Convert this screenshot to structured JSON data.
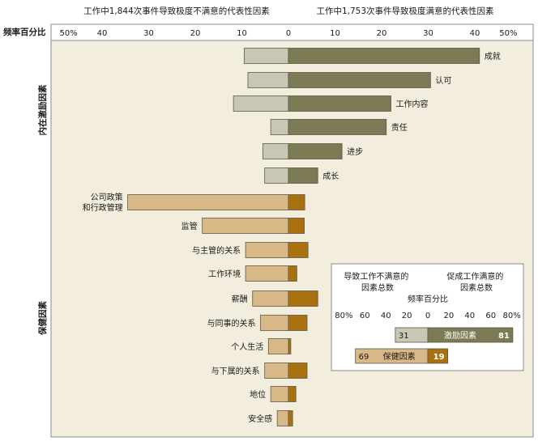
{
  "colors": {
    "panel_bg": "#f2eddc",
    "frame": "#8a8a8a",
    "motivator_left": "#c8c6b4",
    "motivator_right": "#7b7a55",
    "hygiene_left": "#d9b887",
    "hygiene_right": "#a8700f",
    "bar_stroke": "#5a5a48"
  },
  "header": {
    "left_title": "工作中1,844次事件导致极度不满意的代表性因素",
    "right_title": "工作中1,753次事件导致极度满意的代表性因素",
    "axis_caption": "频率百分比"
  },
  "group_labels": {
    "motivators": "内在激励因素",
    "hygiene": "保健因素"
  },
  "chart_data": {
    "type": "bar",
    "orientation": "diverging-horizontal",
    "xlim": [
      -50,
      50
    ],
    "ticks": [
      {
        "value": -50,
        "label": "50%"
      },
      {
        "value": -40,
        "label": "40"
      },
      {
        "value": -30,
        "label": "30"
      },
      {
        "value": -20,
        "label": "20"
      },
      {
        "value": -10,
        "label": "10"
      },
      {
        "value": 0,
        "label": "0"
      },
      {
        "value": 10,
        "label": "10"
      },
      {
        "value": 20,
        "label": "20"
      },
      {
        "value": 30,
        "label": "30"
      },
      {
        "value": 40,
        "label": "40"
      },
      {
        "value": 50,
        "label": "50%"
      }
    ],
    "categories": [
      {
        "label": "成就",
        "group": "motivators",
        "dissatisfied": 9.5,
        "satisfied": 41
      },
      {
        "label": "认可",
        "group": "motivators",
        "dissatisfied": 8.7,
        "satisfied": 30.5
      },
      {
        "label": "工作内容",
        "group": "motivators",
        "dissatisfied": 11.8,
        "satisfied": 22
      },
      {
        "label": "责任",
        "group": "motivators",
        "dissatisfied": 3.8,
        "satisfied": 21
      },
      {
        "label": "进步",
        "group": "motivators",
        "dissatisfied": 5.5,
        "satisfied": 11.5
      },
      {
        "label": "成长",
        "group": "motivators",
        "dissatisfied": 5.1,
        "satisfied": 6.3
      },
      {
        "label": "公司政策\n和行政管理",
        "group": "hygiene",
        "dissatisfied": 34.5,
        "satisfied": 3.5
      },
      {
        "label": "监管",
        "group": "hygiene",
        "dissatisfied": 18.5,
        "satisfied": 3.4
      },
      {
        "label": "与主管的关系",
        "group": "hygiene",
        "dissatisfied": 9.2,
        "satisfied": 4.2
      },
      {
        "label": "工作环境",
        "group": "hygiene",
        "dissatisfied": 9.2,
        "satisfied": 1.8
      },
      {
        "label": "薪酬",
        "group": "hygiene",
        "dissatisfied": 7.7,
        "satisfied": 6.3
      },
      {
        "label": "与同事的关系",
        "group": "hygiene",
        "dissatisfied": 6,
        "satisfied": 4
      },
      {
        "label": "个人生活",
        "group": "hygiene",
        "dissatisfied": 4.3,
        "satisfied": 0.5
      },
      {
        "label": "与下属的关系",
        "group": "hygiene",
        "dissatisfied": 5.1,
        "satisfied": 4
      },
      {
        "label": "地位",
        "group": "hygiene",
        "dissatisfied": 3.8,
        "satisfied": 1.6
      },
      {
        "label": "安全感",
        "group": "hygiene",
        "dissatisfied": 2.4,
        "satisfied": 0.9
      }
    ]
  },
  "inset": {
    "left_title": "导致工作不满意的\n因素总数",
    "right_title": "促成工作满意的\n因素总数",
    "axis_caption": "频率百分比",
    "ticks": [
      {
        "value": -80,
        "label": "80%"
      },
      {
        "value": -60,
        "label": "60"
      },
      {
        "value": -40,
        "label": "40"
      },
      {
        "value": -20,
        "label": "20"
      },
      {
        "value": 0,
        "label": "0"
      },
      {
        "value": 20,
        "label": "20"
      },
      {
        "value": 40,
        "label": "40"
      },
      {
        "value": 60,
        "label": "60"
      },
      {
        "value": 80,
        "label": "80%"
      }
    ],
    "bars": [
      {
        "label": "激励因素",
        "group": "motivators",
        "left_value": 31,
        "right_value": 81
      },
      {
        "label": "保健因素",
        "group": "hygiene",
        "left_value": 69,
        "right_value": 19
      }
    ]
  }
}
